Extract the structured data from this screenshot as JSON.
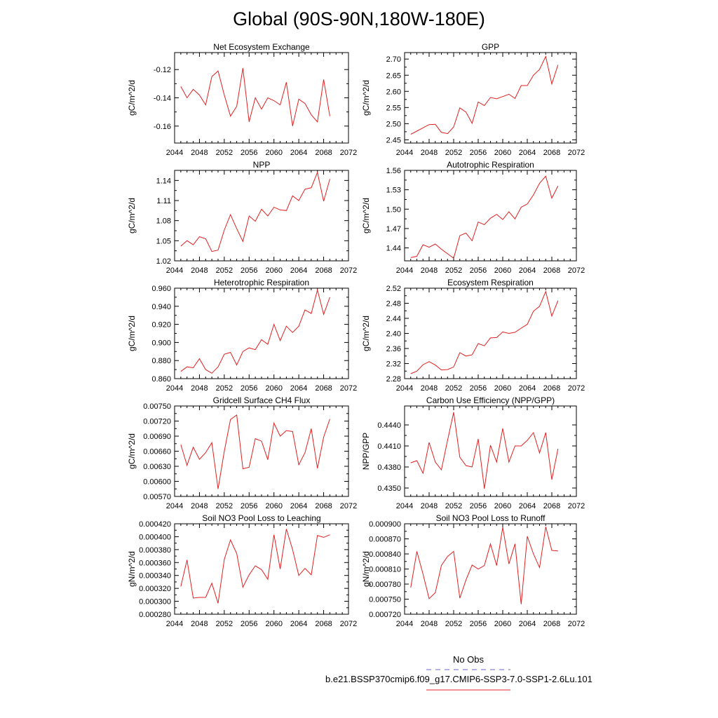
{
  "title": "Global (90S-90N,180W-180E)",
  "legend": {
    "obs_label": "No Obs",
    "obs_color": "#6666cc",
    "case_label": "b.e21.BSSP370cmip6.f09_g17.CMIP6-SSP3-7.0-SSP1-2.6Lu.101",
    "case_color": "#e02020"
  },
  "chart_data": [
    {
      "type": "line",
      "title": "Net Ecosystem Exchange",
      "ylabel": "gC/m^2/d",
      "xlim": [
        2044,
        2072
      ],
      "ylim": [
        -0.172,
        -0.108
      ],
      "xticks": [
        "2044",
        "2048",
        "2052",
        "2056",
        "2060",
        "2064",
        "2068",
        "2072"
      ],
      "yticks": [
        -0.12,
        -0.14,
        -0.16
      ],
      "ytick_labels": [
        "-0.12",
        "-0.14",
        "-0.16"
      ],
      "series": [
        {
          "color": "#e02020",
          "x": [
            2045,
            2046,
            2047,
            2048,
            2049,
            2050,
            2051,
            2052,
            2053,
            2054,
            2055,
            2056,
            2057,
            2058,
            2059,
            2060,
            2061,
            2062,
            2063,
            2064,
            2065,
            2066,
            2067,
            2068,
            2069
          ],
          "y": [
            -0.132,
            -0.14,
            -0.134,
            -0.138,
            -0.145,
            -0.125,
            -0.121,
            -0.138,
            -0.153,
            -0.146,
            -0.119,
            -0.157,
            -0.14,
            -0.148,
            -0.14,
            -0.142,
            -0.145,
            -0.129,
            -0.16,
            -0.141,
            -0.144,
            -0.152,
            -0.157,
            -0.127,
            -0.153
          ]
        }
      ]
    },
    {
      "type": "line",
      "title": "GPP",
      "ylabel": "gC/m^2/d",
      "xlim": [
        2044,
        2072
      ],
      "ylim": [
        2.44,
        2.72
      ],
      "xticks": [
        "2044",
        "2048",
        "2052",
        "2056",
        "2060",
        "2064",
        "2068",
        "2072"
      ],
      "yticks": [
        2.45,
        2.5,
        2.55,
        2.6,
        2.65,
        2.7
      ],
      "ytick_labels": [
        "2.45",
        "2.50",
        "2.55",
        "2.60",
        "2.65",
        "2.70"
      ],
      "series": [
        {
          "color": "#e02020",
          "x": [
            2045,
            2046,
            2047,
            2048,
            2049,
            2050,
            2051,
            2052,
            2053,
            2054,
            2055,
            2056,
            2057,
            2058,
            2059,
            2060,
            2061,
            2062,
            2063,
            2064,
            2065,
            2066,
            2067,
            2068,
            2069
          ],
          "y": [
            2.467,
            2.477,
            2.487,
            2.497,
            2.498,
            2.473,
            2.469,
            2.49,
            2.549,
            2.536,
            2.501,
            2.567,
            2.556,
            2.581,
            2.577,
            2.584,
            2.591,
            2.578,
            2.618,
            2.618,
            2.65,
            2.668,
            2.708,
            2.623,
            2.682
          ]
        }
      ]
    },
    {
      "type": "line",
      "title": "NPP",
      "ylabel": "gC/m^2/d",
      "xlim": [
        2044,
        2072
      ],
      "ylim": [
        1.02,
        1.155
      ],
      "xticks": [
        "2044",
        "2048",
        "2052",
        "2056",
        "2060",
        "2064",
        "2068",
        "2072"
      ],
      "yticks": [
        1.02,
        1.05,
        1.08,
        1.11,
        1.14
      ],
      "ytick_labels": [
        "1.02",
        "1.05",
        "1.08",
        "1.11",
        "1.14"
      ],
      "series": [
        {
          "color": "#e02020",
          "x": [
            2045,
            2046,
            2047,
            2048,
            2049,
            2050,
            2051,
            2052,
            2053,
            2054,
            2055,
            2056,
            2057,
            2058,
            2059,
            2060,
            2061,
            2062,
            2063,
            2064,
            2065,
            2066,
            2067,
            2068,
            2069
          ],
          "y": [
            1.042,
            1.05,
            1.044,
            1.056,
            1.053,
            1.034,
            1.036,
            1.066,
            1.089,
            1.068,
            1.049,
            1.087,
            1.079,
            1.097,
            1.087,
            1.1,
            1.096,
            1.095,
            1.117,
            1.11,
            1.127,
            1.129,
            1.152,
            1.109,
            1.142
          ]
        }
      ]
    },
    {
      "type": "line",
      "title": "Autotrophic Respiration",
      "ylabel": "gC/m^2/d",
      "xlim": [
        2044,
        2072
      ],
      "ylim": [
        1.42,
        1.56
      ],
      "xticks": [
        "2044",
        "2048",
        "2052",
        "2056",
        "2060",
        "2064",
        "2068",
        "2072"
      ],
      "yticks": [
        1.44,
        1.47,
        1.5,
        1.53,
        1.56
      ],
      "ytick_labels": [
        "1.44",
        "1.47",
        "1.50",
        "1.53",
        "1.56"
      ],
      "series": [
        {
          "color": "#e02020",
          "x": [
            2045,
            2046,
            2047,
            2048,
            2049,
            2050,
            2051,
            2052,
            2053,
            2054,
            2055,
            2056,
            2057,
            2058,
            2059,
            2060,
            2061,
            2062,
            2063,
            2064,
            2065,
            2066,
            2067,
            2068,
            2069
          ],
          "y": [
            1.425,
            1.427,
            1.445,
            1.441,
            1.446,
            1.438,
            1.431,
            1.424,
            1.459,
            1.463,
            1.451,
            1.48,
            1.476,
            1.486,
            1.492,
            1.484,
            1.496,
            1.485,
            1.503,
            1.508,
            1.522,
            1.54,
            1.551,
            1.517,
            1.536
          ]
        }
      ]
    },
    {
      "type": "line",
      "title": "Heterotrophic Respiration",
      "ylabel": "gC/m^2/d",
      "xlim": [
        2044,
        2072
      ],
      "ylim": [
        0.86,
        0.96
      ],
      "xticks": [
        "2044",
        "2048",
        "2052",
        "2056",
        "2060",
        "2064",
        "2068",
        "2072"
      ],
      "yticks": [
        0.86,
        0.88,
        0.9,
        0.92,
        0.94,
        0.96
      ],
      "ytick_labels": [
        "0.860",
        "0.880",
        "0.900",
        "0.920",
        "0.940",
        "0.960"
      ],
      "series": [
        {
          "color": "#e02020",
          "x": [
            2045,
            2046,
            2047,
            2048,
            2049,
            2050,
            2051,
            2052,
            2053,
            2054,
            2055,
            2056,
            2057,
            2058,
            2059,
            2060,
            2061,
            2062,
            2063,
            2064,
            2065,
            2066,
            2067,
            2068,
            2069
          ],
          "y": [
            0.868,
            0.873,
            0.872,
            0.882,
            0.87,
            0.866,
            0.873,
            0.887,
            0.889,
            0.875,
            0.89,
            0.894,
            0.892,
            0.903,
            0.898,
            0.92,
            0.902,
            0.918,
            0.911,
            0.918,
            0.936,
            0.932,
            0.958,
            0.931,
            0.95
          ]
        }
      ]
    },
    {
      "type": "line",
      "title": "Ecosystem Respiration",
      "ylabel": "gC/m^2/d",
      "xlim": [
        2044,
        2072
      ],
      "ylim": [
        2.28,
        2.52
      ],
      "xticks": [
        "2044",
        "2048",
        "2052",
        "2056",
        "2060",
        "2064",
        "2068",
        "2072"
      ],
      "yticks": [
        2.28,
        2.32,
        2.36,
        2.4,
        2.44,
        2.48,
        2.52
      ],
      "ytick_labels": [
        "2.28",
        "2.32",
        "2.36",
        "2.40",
        "2.44",
        "2.48",
        "2.52"
      ],
      "series": [
        {
          "color": "#e02020",
          "x": [
            2045,
            2046,
            2047,
            2048,
            2049,
            2050,
            2051,
            2052,
            2053,
            2054,
            2055,
            2056,
            2057,
            2058,
            2059,
            2060,
            2061,
            2062,
            2063,
            2064,
            2065,
            2066,
            2067,
            2068,
            2069
          ],
          "y": [
            2.293,
            2.3,
            2.317,
            2.325,
            2.316,
            2.303,
            2.304,
            2.311,
            2.349,
            2.34,
            2.343,
            2.373,
            2.367,
            2.388,
            2.389,
            2.404,
            2.4,
            2.403,
            2.414,
            2.424,
            2.459,
            2.472,
            2.511,
            2.446,
            2.487
          ]
        }
      ]
    },
    {
      "type": "line",
      "title": "Gridcell Surface CH4 Flux",
      "ylabel": "gC/m^2/d",
      "xlim": [
        2044,
        2072
      ],
      "ylim": [
        0.0057,
        0.0075
      ],
      "xticks": [
        "2044",
        "2048",
        "2052",
        "2056",
        "2060",
        "2064",
        "2068",
        "2072"
      ],
      "yticks": [
        0.0057,
        0.006,
        0.0063,
        0.0066,
        0.0069,
        0.0072,
        0.0075
      ],
      "ytick_labels": [
        "0.00570",
        "0.00600",
        "0.00630",
        "0.00660",
        "0.00690",
        "0.00720",
        "0.00750"
      ],
      "series": [
        {
          "color": "#e02020",
          "x": [
            2045,
            2046,
            2047,
            2048,
            2049,
            2050,
            2051,
            2052,
            2053,
            2054,
            2055,
            2056,
            2057,
            2058,
            2059,
            2060,
            2061,
            2062,
            2063,
            2064,
            2065,
            2066,
            2067,
            2068,
            2069
          ],
          "y": [
            0.00673,
            0.00632,
            0.00668,
            0.00644,
            0.00657,
            0.00677,
            0.00585,
            0.0066,
            0.00723,
            0.00732,
            0.00625,
            0.00628,
            0.00685,
            0.0068,
            0.00643,
            0.00716,
            0.0069,
            0.00701,
            0.00699,
            0.00633,
            0.00657,
            0.00705,
            0.00626,
            0.00688,
            0.00724
          ]
        }
      ]
    },
    {
      "type": "line",
      "title": "Carbon Use Efficiency (NPP/GPP)",
      "ylabel": "NPP/GPP",
      "xlim": [
        2044,
        2072
      ],
      "ylim": [
        0.4338,
        0.4467
      ],
      "xticks": [
        "2044",
        "2048",
        "2052",
        "2056",
        "2060",
        "2064",
        "2068",
        "2072"
      ],
      "yticks": [
        0.435,
        0.438,
        0.441,
        0.444
      ],
      "ytick_labels": [
        "0.4350",
        "0.4380",
        "0.4410",
        "0.4440"
      ],
      "series": [
        {
          "color": "#e02020",
          "x": [
            2045,
            2046,
            2047,
            2048,
            2049,
            2050,
            2051,
            2052,
            2053,
            2054,
            2055,
            2056,
            2057,
            2058,
            2059,
            2060,
            2061,
            2062,
            2063,
            2064,
            2065,
            2066,
            2067,
            2068,
            2069
          ],
          "y": [
            0.4386,
            0.4389,
            0.4371,
            0.4415,
            0.4387,
            0.4376,
            0.4418,
            0.4458,
            0.4394,
            0.4382,
            0.438,
            0.442,
            0.4349,
            0.4411,
            0.4387,
            0.4435,
            0.4387,
            0.441,
            0.441,
            0.4418,
            0.4429,
            0.44,
            0.4429,
            0.4362,
            0.4406
          ]
        }
      ]
    },
    {
      "type": "line",
      "title": "Soil NO3 Pool Loss to Leaching",
      "ylabel": "gN/m^2/d",
      "xlim": [
        2044,
        2072
      ],
      "ylim": [
        0.00028,
        0.00042
      ],
      "xticks": [
        "2044",
        "2048",
        "2052",
        "2056",
        "2060",
        "2064",
        "2068",
        "2072"
      ],
      "yticks": [
        0.00028,
        0.0003,
        0.00032,
        0.00034,
        0.00036,
        0.00038,
        0.0004,
        0.00042
      ],
      "ytick_labels": [
        "0.000280",
        "0.000300",
        "0.000320",
        "0.000340",
        "0.000360",
        "0.000380",
        "0.000400",
        "0.000420"
      ],
      "extra_yticks": [
        "0.000290",
        "0.000310",
        "0.000330",
        "0.000350",
        "0.000370",
        "0.000390",
        "0.000410"
      ],
      "series": [
        {
          "color": "#e02020",
          "x": [
            2045,
            2046,
            2047,
            2048,
            2049,
            2050,
            2051,
            2052,
            2053,
            2054,
            2055,
            2056,
            2057,
            2058,
            2059,
            2060,
            2061,
            2062,
            2063,
            2064,
            2065,
            2066,
            2067,
            2068,
            2069
          ],
          "y": [
            0.000323,
            0.000364,
            0.000305,
            0.000306,
            0.000306,
            0.000328,
            0.000297,
            0.000365,
            0.000395,
            0.000374,
            0.000322,
            0.000341,
            0.000355,
            0.000349,
            0.000334,
            0.000403,
            0.00035,
            0.000412,
            0.00038,
            0.00034,
            0.000351,
            0.000341,
            0.000402,
            0.000399,
            0.000403
          ]
        }
      ]
    },
    {
      "type": "line",
      "title": "Soil NO3 Pool Loss to Runoff",
      "ylabel": "gN/m^2/d",
      "xlim": [
        2044,
        2072
      ],
      "ylim": [
        0.00072,
        0.0009
      ],
      "xticks": [
        "2044",
        "2048",
        "2052",
        "2056",
        "2060",
        "2064",
        "2068",
        "2072"
      ],
      "yticks": [
        0.00072,
        0.00075,
        0.00078,
        0.00081,
        0.00084,
        0.00087,
        0.0009
      ],
      "ytick_labels": [
        "0.000720",
        "0.000750",
        "0.000780",
        "0.000810",
        "0.000840",
        "0.000870",
        "0.000900"
      ],
      "series": [
        {
          "color": "#e02020",
          "x": [
            2045,
            2046,
            2047,
            2048,
            2049,
            2050,
            2051,
            2052,
            2053,
            2054,
            2055,
            2056,
            2057,
            2058,
            2059,
            2060,
            2061,
            2062,
            2063,
            2064,
            2065,
            2066,
            2067,
            2068,
            2069
          ],
          "y": [
            0.000773,
            0.000845,
            0.0008,
            0.000751,
            0.000763,
            0.000817,
            0.000835,
            0.000845,
            0.000752,
            0.000788,
            0.000818,
            0.00081,
            0.000817,
            0.00086,
            0.000817,
            0.000893,
            0.00082,
            0.00086,
            0.00074,
            0.000875,
            0.00084,
            0.000813,
            0.000894,
            0.000847,
            0.000846
          ]
        }
      ]
    }
  ]
}
